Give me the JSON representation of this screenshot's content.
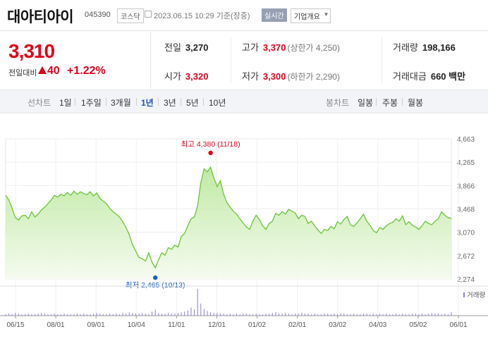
{
  "header": {
    "name": "대아티아이",
    "code": "045390",
    "market": "코스닥",
    "datetime": "2023.06.15 10:29",
    "basis": "기준(장중)",
    "realtime": "실시간",
    "company_info": "기업개요"
  },
  "price": {
    "current": "3,310",
    "change_label": "전일대비",
    "change": "40",
    "change_pct": "+1.22%"
  },
  "stats": {
    "prev_label": "전일",
    "prev": "3,270",
    "high_label": "고가",
    "high": "3,370",
    "high_sub": "(상한가 4,250)",
    "volume_label": "거래량",
    "volume": "198,166",
    "open_label": "시가",
    "open": "3,320",
    "low_label": "저가",
    "low": "3,300",
    "low_sub": "(하한가 2,290)",
    "amount_label": "거래대금",
    "amount": "660 백만"
  },
  "tabs": {
    "line_label": "선차트",
    "line_items": [
      "1일",
      "1주일",
      "3개월",
      "1년",
      "3년",
      "5년",
      "10년"
    ],
    "selected": "1년",
    "candle_label": "봉차트",
    "candle_items": [
      "일봉",
      "주봉",
      "월봉"
    ]
  },
  "colors": {
    "up": "#e0001b",
    "selected_tab": "#1a4fbf",
    "line": "#6cc43a",
    "fill": "#dff3cf",
    "volume": "#8a7fd6",
    "low_marker": "#1f5fc4"
  },
  "chart_data": {
    "type": "area",
    "y_ticks": [
      "4,663",
      "4,265",
      "3,866",
      "3,468",
      "3,070",
      "2,672",
      "2,274"
    ],
    "ylim": [
      2274,
      4663
    ],
    "x_ticks": [
      "06/15",
      "08/01",
      "09/01",
      "10/04",
      "11/01",
      "12/01",
      "01/02",
      "02/01",
      "03/02",
      "04/03",
      "05/02",
      "06/01"
    ],
    "high_annotation": "최고 4,380 (11/18)",
    "low_annotation": "최저 2,465 (10/13)",
    "volume_label": "거래량",
    "series": [
      {
        "values": [
          3700,
          3620,
          3480,
          3320,
          3280,
          3350,
          3360,
          3300,
          3420,
          3330,
          3380,
          3450,
          3500,
          3560,
          3620,
          3700,
          3670,
          3720,
          3690,
          3750,
          3700,
          3770,
          3720,
          3760,
          3730,
          3710,
          3760,
          3690,
          3740,
          3650,
          3600,
          3560,
          3480,
          3420,
          3380,
          3330,
          3250,
          3150,
          3030,
          2860,
          2750,
          2640,
          2620,
          2580,
          2720,
          2560,
          2465,
          2600,
          2720,
          2680,
          2810,
          2780,
          2850,
          2820,
          3000,
          3050,
          3180,
          3300,
          3330,
          3520,
          3920,
          4150,
          4100,
          4180,
          4000,
          3850,
          3950,
          3720,
          3580,
          3500,
          3430,
          3380,
          3300,
          3230,
          3160,
          3120,
          3260,
          3360,
          3290,
          3180,
          3120,
          3220,
          3260,
          3390,
          3360,
          3420,
          3380,
          3460,
          3430,
          3400,
          3300,
          3360,
          3340,
          3220,
          3260,
          3180,
          3110,
          3050,
          3120,
          3100,
          3170,
          3130,
          3250,
          3210,
          3290,
          3340,
          3200,
          3170,
          3230,
          3300,
          3380,
          3260,
          3190,
          3100,
          3060,
          3150,
          3120,
          3180,
          3220,
          3240,
          3300,
          3260,
          3350,
          3200,
          3250,
          3190,
          3160,
          3120,
          3180,
          3260,
          3220,
          3200,
          3260,
          3300,
          3420,
          3360,
          3320,
          3310
        ]
      }
    ],
    "volume": [
      2,
      3,
      2,
      4,
      3,
      2,
      2,
      3,
      2,
      2,
      3,
      4,
      3,
      2,
      2,
      3,
      2,
      2,
      3,
      2,
      2,
      2,
      3,
      2,
      3,
      2,
      2,
      3,
      4,
      3,
      2,
      2,
      3,
      2,
      3,
      2,
      4,
      3,
      5,
      4,
      3,
      3,
      4,
      3,
      2,
      6,
      9,
      4,
      3,
      3,
      4,
      3,
      3,
      4,
      5,
      6,
      8,
      12,
      9,
      40,
      18,
      10,
      7,
      5,
      4,
      4,
      3,
      3,
      2,
      3,
      2,
      3,
      2,
      3,
      3,
      2,
      2,
      3,
      2,
      2,
      3,
      3,
      4,
      5,
      3,
      3,
      4,
      3,
      2,
      3,
      3,
      4,
      3,
      3,
      2,
      3,
      2,
      2,
      3,
      3,
      2,
      3,
      2,
      3,
      3,
      2,
      2,
      3,
      2,
      2,
      3,
      3,
      2,
      3,
      2,
      3,
      2,
      3,
      2,
      2,
      3,
      2,
      3,
      2,
      2,
      3,
      3,
      2,
      3,
      2,
      3,
      4,
      3,
      3,
      2,
      3,
      2,
      5
    ]
  }
}
